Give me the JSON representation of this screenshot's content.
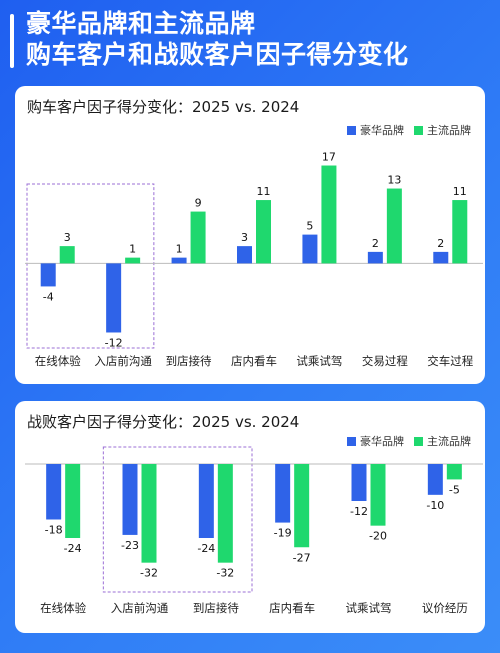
{
  "headline": {
    "line1": "豪华品牌和主流品牌",
    "line2": "购车客户和战败客户因子得分变化"
  },
  "colors": {
    "luxury": "#2f63e8",
    "mainstream": "#1fd86e",
    "highlight_border": "#9b6fd6"
  },
  "chart_data": [
    {
      "type": "bar",
      "title": "购车客户因子得分变化：2025 vs. 2024",
      "categories": [
        "在线体验",
        "入店前沟通",
        "到店接待",
        "店内看车",
        "试乘试驾",
        "交易过程",
        "交车过程"
      ],
      "series": [
        {
          "name": "豪华品牌",
          "values": [
            -4,
            -12,
            1,
            3,
            5,
            2,
            2
          ]
        },
        {
          "name": "主流品牌",
          "values": [
            3,
            1,
            9,
            11,
            17,
            13,
            11
          ]
        }
      ],
      "ylim": [
        -14,
        19
      ],
      "highlight_categories": [
        0,
        1
      ],
      "legend": "top-right",
      "grid": false
    },
    {
      "type": "bar",
      "title": "战败客户因子得分变化：2025 vs. 2024",
      "categories": [
        "在线体验",
        "入店前沟通",
        "到店接待",
        "店内看车",
        "试乘试驾",
        "议价经历"
      ],
      "series": [
        {
          "name": "豪华品牌",
          "values": [
            -18,
            -23,
            -24,
            -19,
            -12,
            -10
          ]
        },
        {
          "name": "主流品牌",
          "values": [
            -24,
            -32,
            -32,
            -27,
            -20,
            -5
          ]
        }
      ],
      "ylim": [
        -36,
        0
      ],
      "highlight_categories": [
        1,
        2
      ],
      "legend": "top-right",
      "grid": false
    }
  ]
}
